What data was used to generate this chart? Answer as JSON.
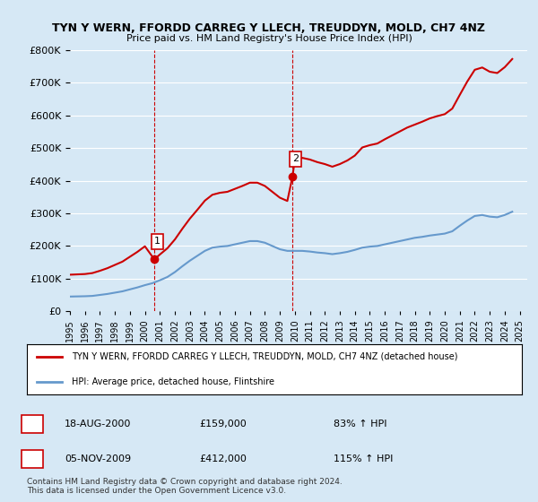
{
  "title": "TYN Y WERN, FFORDD CARREG Y LLECH, TREUDDYN, MOLD, CH7 4NZ",
  "subtitle": "Price paid vs. HM Land Registry's House Price Index (HPI)",
  "background_color": "#d6e8f5",
  "plot_bg_color": "#d6e8f5",
  "ylim": [
    0,
    800000
  ],
  "yticks": [
    0,
    100000,
    200000,
    300000,
    400000,
    500000,
    600000,
    700000,
    800000
  ],
  "xlim_start": 1995.0,
  "xlim_end": 2025.5,
  "sale1_x": 2000.63,
  "sale1_y": 159000,
  "sale1_label": "1",
  "sale2_x": 2009.84,
  "sale2_y": 412000,
  "sale2_label": "2",
  "vline1_x": 2000.63,
  "vline2_x": 2009.84,
  "red_line_color": "#cc0000",
  "blue_line_color": "#6699cc",
  "legend_red_label": "TYN Y WERN, FFORDD CARREG Y LLECH, TREUDDYN, MOLD, CH7 4NZ (detached house)",
  "legend_blue_label": "HPI: Average price, detached house, Flintshire",
  "footer_line1": "Contains HM Land Registry data © Crown copyright and database right 2024.",
  "footer_line2": "This data is licensed under the Open Government Licence v3.0.",
  "table_rows": [
    {
      "label": "1",
      "date": "18-AUG-2000",
      "price": "£159,000",
      "hpi": "83% ↑ HPI"
    },
    {
      "label": "2",
      "date": "05-NOV-2009",
      "price": "£412,000",
      "hpi": "115% ↑ HPI"
    }
  ],
  "hpi_data_x": [
    1995.0,
    1995.5,
    1996.0,
    1996.5,
    1997.0,
    1997.5,
    1998.0,
    1998.5,
    1999.0,
    1999.5,
    2000.0,
    2000.5,
    2001.0,
    2001.5,
    2002.0,
    2002.5,
    2003.0,
    2003.5,
    2004.0,
    2004.5,
    2005.0,
    2005.5,
    2006.0,
    2006.5,
    2007.0,
    2007.5,
    2008.0,
    2008.5,
    2009.0,
    2009.5,
    2010.0,
    2010.5,
    2011.0,
    2011.5,
    2012.0,
    2012.5,
    2013.0,
    2013.5,
    2014.0,
    2014.5,
    2015.0,
    2015.5,
    2016.0,
    2016.5,
    2017.0,
    2017.5,
    2018.0,
    2018.5,
    2019.0,
    2019.5,
    2020.0,
    2020.5,
    2021.0,
    2021.5,
    2022.0,
    2022.5,
    2023.0,
    2023.5,
    2024.0,
    2024.5
  ],
  "hpi_data_y": [
    45000,
    45500,
    46000,
    47000,
    50000,
    53000,
    57000,
    61000,
    67000,
    73000,
    80000,
    86000,
    95000,
    105000,
    120000,
    138000,
    155000,
    170000,
    185000,
    195000,
    198000,
    200000,
    205000,
    210000,
    215000,
    215000,
    210000,
    200000,
    190000,
    185000,
    185000,
    185000,
    183000,
    180000,
    178000,
    175000,
    178000,
    182000,
    188000,
    195000,
    198000,
    200000,
    205000,
    210000,
    215000,
    220000,
    225000,
    228000,
    232000,
    235000,
    238000,
    245000,
    262000,
    278000,
    292000,
    295000,
    290000,
    288000,
    295000,
    305000
  ],
  "red_line_x": [
    1995.0,
    1995.5,
    1996.0,
    1996.5,
    1997.0,
    1997.5,
    1998.0,
    1998.5,
    1999.0,
    1999.5,
    2000.0,
    2000.63,
    2001.0,
    2001.5,
    2002.0,
    2002.5,
    2003.0,
    2003.5,
    2004.0,
    2004.5,
    2005.0,
    2005.5,
    2006.0,
    2006.5,
    2007.0,
    2007.5,
    2008.0,
    2008.5,
    2009.0,
    2009.5,
    2009.84,
    2010.0,
    2010.5,
    2011.0,
    2011.5,
    2012.0,
    2012.5,
    2013.0,
    2013.5,
    2014.0,
    2014.5,
    2015.0,
    2015.5,
    2016.0,
    2016.5,
    2017.0,
    2017.5,
    2018.0,
    2018.5,
    2019.0,
    2019.5,
    2020.0,
    2020.5,
    2021.0,
    2021.5,
    2022.0,
    2022.5,
    2023.0,
    2023.5,
    2024.0,
    2024.5
  ],
  "red_line_y": [
    112000,
    113000,
    114000,
    117000,
    124000,
    132000,
    142000,
    152000,
    167000,
    182000,
    199000,
    159000,
    174000,
    193000,
    220000,
    253000,
    284000,
    311000,
    339000,
    357000,
    363000,
    366000,
    375000,
    384000,
    394000,
    394000,
    384000,
    366000,
    348000,
    338000,
    412000,
    464000,
    470000,
    465000,
    457000,
    451000,
    443000,
    451000,
    462000,
    477000,
    502000,
    509000,
    514000,
    527000,
    539000,
    551000,
    563000,
    572000,
    581000,
    591000,
    598000,
    604000,
    621000,
    663000,
    704000,
    740000,
    747000,
    734000,
    730000,
    748000,
    773000
  ]
}
